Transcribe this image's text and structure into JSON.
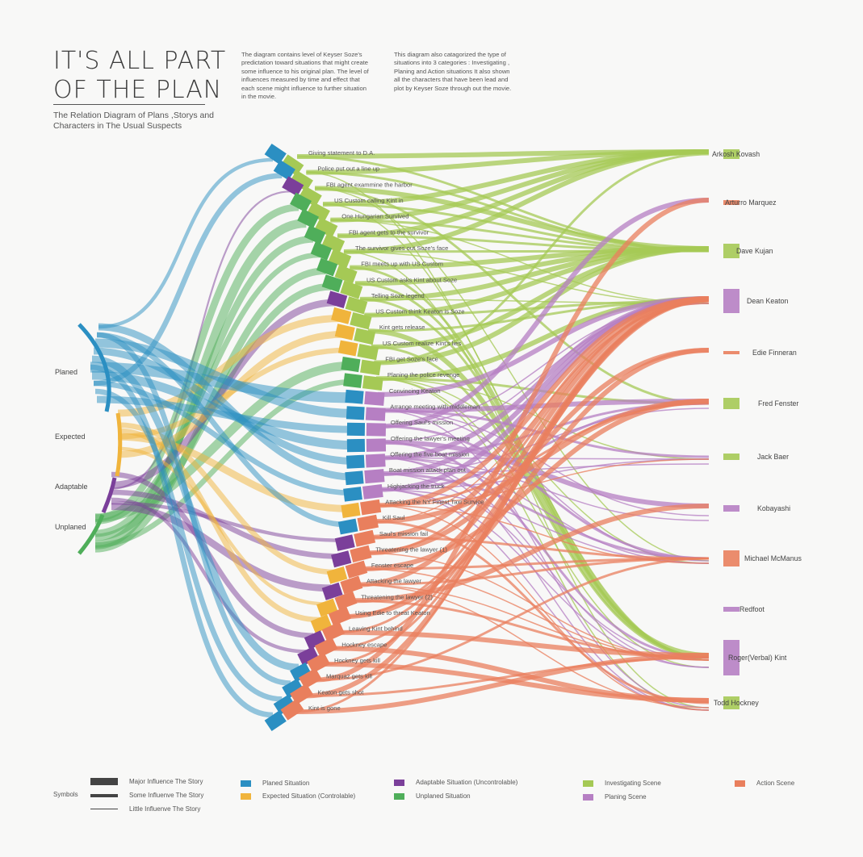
{
  "title_line1": "IT'S ALL PART",
  "title_line2": "OF THE PLAN",
  "subtitle": "The Relation Diagram of Plans ,Storys and Characters in The Usual Suspects",
  "description_1": "The diagram contains level of Keyser Soze's predictation toward situations that might create some influence to his original plan. The level of influences measured by time and effect that each scene might influence to further situation in the movie.",
  "description_2": "This diagram also catagorized the type of situations into 3 categories : Investigating , Planing and Action situations It also shown all the characters that have been lead and plot by Keyser Soze through out the movie.",
  "colors": {
    "planed": "#2b8fc2",
    "expected": "#f0b43c",
    "adaptable": "#7b3f9a",
    "unplaned": "#4fae5a",
    "investigating": "#a5c955",
    "planing": "#b67fc3",
    "action": "#e97f5d"
  },
  "situations": [
    {
      "name": "Planed",
      "type": "planed"
    },
    {
      "name": "Expected",
      "type": "expected"
    },
    {
      "name": "Adaptable",
      "type": "adaptable"
    },
    {
      "name": "Unplaned",
      "type": "unplaned"
    }
  ],
  "scenes": [
    {
      "label": "Giving statement to D.A.",
      "situation": "planed",
      "scene": "investigating"
    },
    {
      "label": "Police put out a line up",
      "situation": "planed",
      "scene": "investigating"
    },
    {
      "label": "FBI agent exammine the harbor",
      "situation": "adaptable",
      "scene": "investigating"
    },
    {
      "label": "US Custom calling Kint in",
      "situation": "unplaned",
      "scene": "investigating"
    },
    {
      "label": "One Hungarian Survived",
      "situation": "unplaned",
      "scene": "investigating"
    },
    {
      "label": "FBI agent gets to the survivor",
      "situation": "unplaned",
      "scene": "investigating"
    },
    {
      "label": "The survivor gives out Soze's face",
      "situation": "unplaned",
      "scene": "investigating"
    },
    {
      "label": "FBI meets up with US Custom",
      "situation": "unplaned",
      "scene": "investigating"
    },
    {
      "label": "US Custom asks Kint about Soze",
      "situation": "unplaned",
      "scene": "investigating"
    },
    {
      "label": "Telling Soze legend",
      "situation": "adaptable",
      "scene": "investigating"
    },
    {
      "label": "US Custom think Keaton is Soze",
      "situation": "expected",
      "scene": "investigating"
    },
    {
      "label": "Kint gets release",
      "situation": "expected",
      "scene": "investigating"
    },
    {
      "label": "US Custom realize Kint's lies",
      "situation": "expected",
      "scene": "investigating"
    },
    {
      "label": "FBI get Soze's face",
      "situation": "unplaned",
      "scene": "investigating"
    },
    {
      "label": "Planing the police revenge",
      "situation": "unplaned",
      "scene": "investigating"
    },
    {
      "label": "Convincing Keaton",
      "situation": "planed",
      "scene": "planing"
    },
    {
      "label": "Arrange meeting with middleman",
      "situation": "planed",
      "scene": "planing"
    },
    {
      "label": "Offering Saul's mission",
      "situation": "planed",
      "scene": "planing"
    },
    {
      "label": "Offering the lawyer's meeting",
      "situation": "planed",
      "scene": "planing"
    },
    {
      "label": "Offering the five boat mission",
      "situation": "planed",
      "scene": "planing"
    },
    {
      "label": "Boat mission attack plan out",
      "situation": "planed",
      "scene": "planing"
    },
    {
      "label": "Highjacking the truck",
      "situation": "planed",
      "scene": "planing"
    },
    {
      "label": "Attacking the NY Finest Taxi Survice",
      "situation": "expected",
      "scene": "action"
    },
    {
      "label": "Kill Saul",
      "situation": "planed",
      "scene": "action"
    },
    {
      "label": "Saul's mission fail",
      "situation": "adaptable",
      "scene": "action"
    },
    {
      "label": "Threatening the lawyer (1)",
      "situation": "adaptable",
      "scene": "action"
    },
    {
      "label": "Fenster escape",
      "situation": "expected",
      "scene": "action"
    },
    {
      "label": "Attacking the lawyer",
      "situation": "adaptable",
      "scene": "action"
    },
    {
      "label": "Threatening the lawyer (2)",
      "situation": "expected",
      "scene": "action"
    },
    {
      "label": "Using Edie to threat Keaton",
      "situation": "expected",
      "scene": "action"
    },
    {
      "label": "Leaving Kint behind",
      "situation": "adaptable",
      "scene": "action"
    },
    {
      "label": "Hockney escape",
      "situation": "adaptable",
      "scene": "action"
    },
    {
      "label": "Hockney gets kill",
      "situation": "planed",
      "scene": "action"
    },
    {
      "label": "Marquaz gets kill",
      "situation": "planed",
      "scene": "action"
    },
    {
      "label": "Keaton gets shot",
      "situation": "planed",
      "scene": "action"
    },
    {
      "label": "Kint is gone",
      "situation": "planed",
      "scene": "action"
    }
  ],
  "characters": [
    "Arkosh Kovash",
    "Arturro Marquez",
    "Dave Kujan",
    "Dean Keaton",
    "Edie Finneran",
    "Fred Fenster",
    "Jack Baer",
    "Kobayashi",
    "Michael McManus",
    "Redfoot",
    "Roger(Verbal) Kint",
    "Todd Hockney"
  ],
  "legend": {
    "symbols_label": "Symbols",
    "major": "Major Influence The Story",
    "some": "Some Influenve The Story",
    "little": "Little Influenve  The Story",
    "planed": "Planed Situation",
    "expected": "Expected Situation (Controlable)",
    "adaptable": "Adaptable Situation (Uncontrolable)",
    "unplaned": "Unplaned Situation",
    "investigating": "Investigating Scene",
    "planing": "Planing Scene",
    "action": "Action Scene"
  }
}
